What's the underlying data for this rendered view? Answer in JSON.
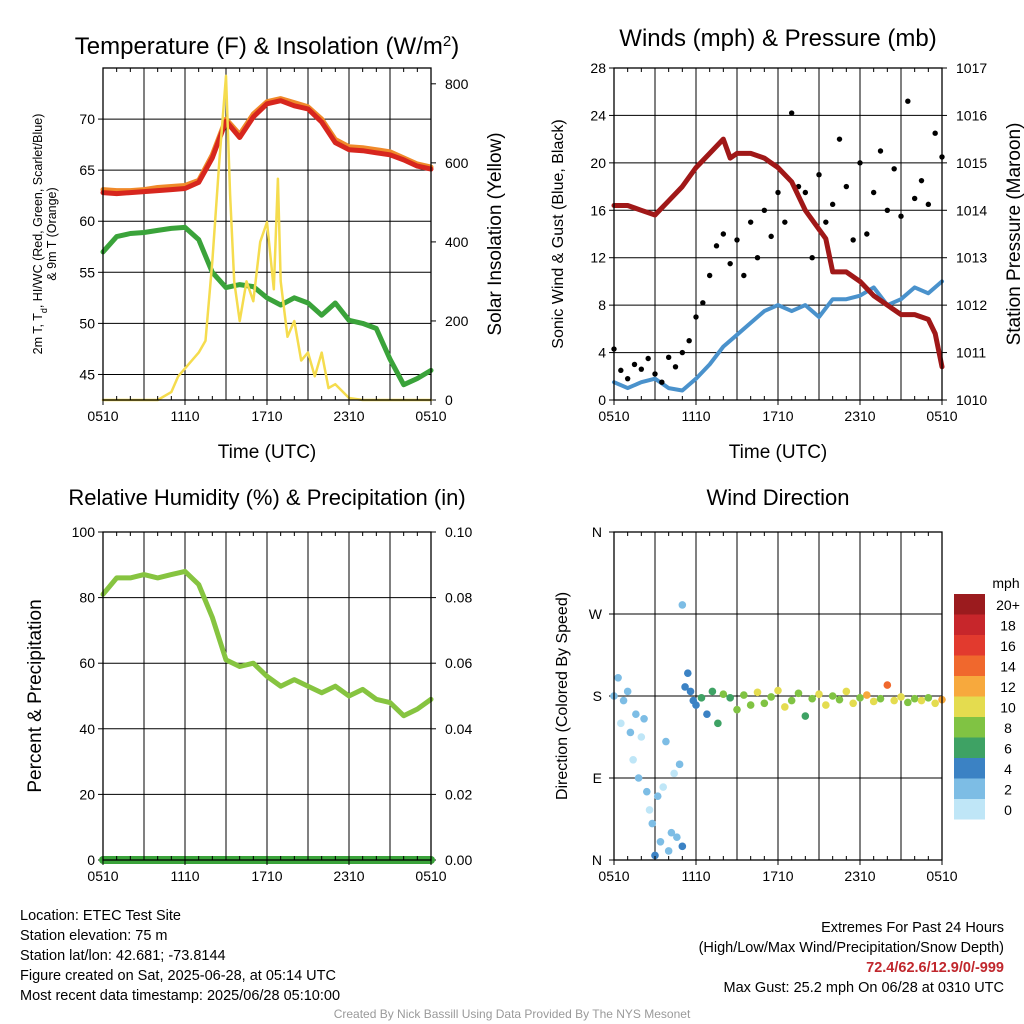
{
  "figure": {
    "credit": "Created By Nick Bassill Using Data Provided By The NYS Mesonet"
  },
  "info": {
    "location": "Location: ETEC Test Site",
    "elevation": "Station elevation: 75 m",
    "latlon": "Station lat/lon: 42.681; -73.8144",
    "created": "Figure created on Sat, 2025-06-28, at 05:14 UTC",
    "recent": "Most recent data timestamp: 2025/06/28 05:10:00",
    "extremes_title": "Extremes For Past 24 Hours",
    "extremes_subtitle": "(High/Low/Max Wind/Precipitation/Snow Depth)",
    "extremes_values": "72.4/62.6/12.9/0/-999",
    "max_gust": "Max Gust: 25.2 mph On 06/28 at 0310 UTC"
  },
  "colors": {
    "temp_red": "#d7261e",
    "temp_orange": "#f08a2a",
    "dewpoint_green": "#3aa33a",
    "insolation_yellow": "#f5dc4e",
    "wind_blue": "#4a92cc",
    "gust_black": "#000000",
    "pressure_maroon": "#a01818",
    "rh_green": "#86c440",
    "precip_green": "#3aa33a"
  },
  "chart_data": [
    {
      "id": "temp",
      "type": "line",
      "title": "Temperature (F) & Insolation (W/m",
      "title_sup": "2",
      "title_end": ")",
      "xlabel": "Time (UTC)",
      "ylabel_line1": "2m T, T",
      "ylabel_sub": "d",
      "ylabel_line1_end": ", HI/WC (Red, Green, Scarlet/Blue)",
      "ylabel_line2": "& 9m T (Orange)",
      "y2label": "Solar Insolation (Yellow)",
      "x_ticks": [
        "0510",
        "1110",
        "1710",
        "2310",
        "0510"
      ],
      "ylim": [
        42.5,
        75
      ],
      "y_ticks": [
        45,
        50,
        55,
        60,
        65,
        70
      ],
      "y2lim": [
        0,
        840
      ],
      "y2_ticks": [
        0,
        200,
        400,
        600,
        800
      ],
      "series": [
        {
          "name": "9m T",
          "color": "#f08a2a",
          "axis": "left",
          "width": 5,
          "x": [
            0,
            1,
            2,
            3,
            4,
            5,
            6,
            7,
            8,
            9,
            10,
            11,
            12,
            13,
            14,
            15,
            16,
            17,
            18,
            19,
            20,
            21,
            22,
            23,
            24
          ],
          "y": [
            63.1,
            63.0,
            63.0,
            63.1,
            63.3,
            63.4,
            63.5,
            64.0,
            66.5,
            70.0,
            68.5,
            70.5,
            71.7,
            72.0,
            71.6,
            71.2,
            70.0,
            68.0,
            67.3,
            67.2,
            67.0,
            66.8,
            66.2,
            65.6,
            65.3
          ]
        },
        {
          "name": "2m T",
          "color": "#d7261e",
          "axis": "left",
          "width": 5,
          "x": [
            0,
            1,
            2,
            3,
            4,
            5,
            6,
            7,
            8,
            9,
            10,
            11,
            12,
            13,
            14,
            15,
            16,
            17,
            18,
            19,
            20,
            21,
            22,
            23,
            24
          ],
          "y": [
            62.8,
            62.7,
            62.8,
            62.9,
            63.0,
            63.1,
            63.2,
            63.8,
            66.2,
            69.8,
            68.2,
            70.2,
            71.5,
            71.8,
            71.3,
            71.0,
            69.7,
            67.7,
            67.0,
            66.9,
            66.7,
            66.5,
            66.0,
            65.4,
            65.1
          ]
        },
        {
          "name": "Dewpoint",
          "color": "#3aa33a",
          "axis": "left",
          "width": 5,
          "x": [
            0,
            1,
            2,
            3,
            4,
            5,
            6,
            7,
            8,
            9,
            10,
            11,
            12,
            13,
            14,
            15,
            16,
            17,
            18,
            19,
            20,
            21,
            22,
            23,
            24
          ],
          "y": [
            57.0,
            58.5,
            58.8,
            58.9,
            59.1,
            59.3,
            59.4,
            58.2,
            55.0,
            53.5,
            53.8,
            53.6,
            52.5,
            51.8,
            52.5,
            52.0,
            50.8,
            52.0,
            50.3,
            50.0,
            49.5,
            46.5,
            44.0,
            44.6,
            45.4
          ]
        },
        {
          "name": "Insolation",
          "color": "#f5dc4e",
          "axis": "right",
          "width": 2.5,
          "x": [
            0,
            1,
            2,
            3,
            4,
            5,
            5.5,
            6,
            7,
            7.5,
            8,
            8.5,
            9,
            9.3,
            9.6,
            10,
            10.5,
            11,
            11.5,
            12,
            12.5,
            12.8,
            13,
            13.5,
            14,
            14.5,
            15,
            15.5,
            16,
            16.5,
            17,
            18,
            19,
            20,
            21,
            22,
            23,
            24
          ],
          "y": [
            0,
            0,
            0,
            0,
            0,
            20,
            60,
            80,
            120,
            150,
            350,
            600,
            820,
            520,
            300,
            200,
            300,
            250,
            400,
            450,
            280,
            560,
            300,
            160,
            200,
            100,
            120,
            60,
            120,
            30,
            40,
            5,
            0,
            0,
            0,
            0,
            0,
            0
          ]
        }
      ]
    },
    {
      "id": "winds",
      "type": "line",
      "title": "Winds (mph) & Pressure (mb)",
      "xlabel": "Time (UTC)",
      "ylabel": "Sonic Wind & Gust (Blue, Black)",
      "y2label": "Station Pressure (Maroon)",
      "x_ticks": [
        "0510",
        "1110",
        "1710",
        "2310",
        "0510"
      ],
      "ylim": [
        0,
        28
      ],
      "y_ticks": [
        0,
        4,
        8,
        12,
        16,
        20,
        24,
        28
      ],
      "y2lim": [
        1010,
        1017
      ],
      "y2_ticks": [
        1010,
        1011,
        1012,
        1013,
        1014,
        1015,
        1016,
        1017
      ],
      "series": [
        {
          "name": "Wind",
          "color": "#4a92cc",
          "axis": "left",
          "width": 4,
          "x": [
            0,
            1,
            2,
            3,
            4,
            5,
            6,
            7,
            8,
            9,
            10,
            11,
            12,
            13,
            14,
            15,
            16,
            17,
            18,
            19,
            20,
            21,
            22,
            23,
            24
          ],
          "y": [
            1.5,
            1.0,
            1.5,
            1.8,
            1.0,
            0.8,
            1.8,
            3.0,
            4.5,
            5.5,
            6.5,
            7.5,
            8.0,
            7.5,
            8.0,
            7.0,
            8.5,
            8.5,
            8.8,
            9.5,
            8.0,
            8.5,
            9.5,
            9.0,
            10.0
          ]
        },
        {
          "name": "Gust",
          "color": "#000000",
          "axis": "left",
          "type": "scatter",
          "x": [
            0,
            0.5,
            1,
            1.5,
            2,
            2.5,
            3,
            3.5,
            4,
            4.5,
            5,
            5.5,
            6,
            6.5,
            7,
            7.5,
            8,
            8.5,
            9,
            9.5,
            10,
            10.5,
            11,
            11.5,
            12,
            12.5,
            13,
            13.5,
            14,
            14.5,
            15,
            15.5,
            16,
            16.5,
            17,
            17.5,
            18,
            18.5,
            19,
            19.5,
            20,
            20.5,
            21,
            21.5,
            22,
            22.5,
            23,
            23.5,
            24
          ],
          "y": [
            4.3,
            2.5,
            1.8,
            3.0,
            2.6,
            3.5,
            2.2,
            1.5,
            3.6,
            2.8,
            4.0,
            5.0,
            7.0,
            8.2,
            10.5,
            13.0,
            14.0,
            11.5,
            13.5,
            10.5,
            15.0,
            12.0,
            16.0,
            13.8,
            17.5,
            15.0,
            24.2,
            18.0,
            17.5,
            12.0,
            19.0,
            15.0,
            16.5,
            22.0,
            18.0,
            13.5,
            20.0,
            14.0,
            17.5,
            21.0,
            16.0,
            19.5,
            15.5,
            25.2,
            17.0,
            18.5,
            16.5,
            22.5,
            20.5
          ]
        },
        {
          "name": "Pressure",
          "color": "#a01818",
          "axis": "right",
          "width": 5,
          "x": [
            0,
            1,
            2,
            3,
            4,
            5,
            6,
            7,
            8,
            8.5,
            9,
            10,
            11,
            11.5,
            12,
            13,
            14,
            15,
            15.5,
            16,
            17,
            18,
            19,
            20,
            21,
            22,
            23,
            23.5,
            24
          ],
          "y": [
            1014.1,
            1014.1,
            1014.0,
            1013.9,
            1014.2,
            1014.5,
            1014.9,
            1015.2,
            1015.5,
            1015.1,
            1015.2,
            1015.2,
            1015.1,
            1015.0,
            1014.9,
            1014.6,
            1014.0,
            1013.6,
            1013.4,
            1012.7,
            1012.7,
            1012.5,
            1012.2,
            1012.0,
            1011.8,
            1011.8,
            1011.7,
            1011.4,
            1010.7
          ]
        }
      ]
    },
    {
      "id": "rh",
      "type": "line",
      "title": "Relative Humidity (%) & Precipitation (in)",
      "xlabel": "",
      "ylabel": "Percent & Precipitation",
      "x_ticks": [
        "0510",
        "1110",
        "1710",
        "2310",
        "0510"
      ],
      "ylim": [
        0,
        100
      ],
      "y_ticks": [
        0,
        20,
        40,
        60,
        80,
        100
      ],
      "y2lim": [
        0,
        0.1
      ],
      "y2_ticks": [
        "0.00",
        "0.02",
        "0.04",
        "0.06",
        "0.08",
        "0.10"
      ],
      "series": [
        {
          "name": "RH",
          "color": "#86c440",
          "axis": "left",
          "width": 5,
          "x": [
            0,
            1,
            2,
            3,
            4,
            5,
            6,
            7,
            8,
            9,
            10,
            11,
            12,
            13,
            14,
            15,
            16,
            17,
            18,
            19,
            20,
            21,
            22,
            23,
            24
          ],
          "y": [
            81,
            86,
            86,
            87,
            86,
            87,
            88,
            84,
            74,
            61,
            59,
            60,
            56,
            53,
            55,
            53,
            51,
            53,
            50,
            52,
            49,
            48,
            44,
            46,
            49
          ]
        },
        {
          "name": "Precipitation",
          "color": "#3aa33a",
          "axis": "right",
          "width": 8,
          "x": [
            0,
            24
          ],
          "y": [
            0,
            0
          ]
        }
      ]
    },
    {
      "id": "wdir",
      "type": "scatter",
      "title": "Wind Direction",
      "ylabel": "Direction (Colored By Speed)",
      "x_ticks": [
        "0510",
        "1110",
        "1710",
        "2310",
        "0510"
      ],
      "y_ticks": [
        "N",
        "E",
        "S",
        "W",
        "N"
      ],
      "ylim": [
        0,
        360
      ],
      "legend_title": "mph",
      "legend_labels": [
        "20+",
        "18",
        "16",
        "14",
        "12",
        "10",
        "8",
        "6",
        "4",
        "2",
        "0"
      ],
      "legend_colors": [
        "#9b1b1e",
        "#c7262b",
        "#e23a2e",
        "#f0682d",
        "#f7a93d",
        "#e4dc4f",
        "#80c343",
        "#3ea264",
        "#3b82c4",
        "#7dbde5",
        "#bfe6f7"
      ],
      "points": [
        [
          0,
          180
        ],
        [
          0.3,
          200
        ],
        [
          0.5,
          150
        ],
        [
          0.7,
          175
        ],
        [
          1,
          185
        ],
        [
          1.2,
          140
        ],
        [
          1.4,
          110
        ],
        [
          1.6,
          160
        ],
        [
          1.8,
          90
        ],
        [
          2,
          135
        ],
        [
          2.2,
          155
        ],
        [
          2.4,
          75
        ],
        [
          2.6,
          55
        ],
        [
          2.8,
          40
        ],
        [
          3,
          5
        ],
        [
          3.2,
          70
        ],
        [
          3.4,
          20
        ],
        [
          3.6,
          80
        ],
        [
          3.8,
          130
        ],
        [
          4,
          10
        ],
        [
          4.2,
          30
        ],
        [
          4.4,
          95
        ],
        [
          4.6,
          25
        ],
        [
          4.8,
          105
        ],
        [
          5,
          280
        ],
        [
          5,
          15
        ],
        [
          5.2,
          190
        ],
        [
          5.4,
          205
        ],
        [
          5.6,
          185
        ],
        [
          5.8,
          175
        ],
        [
          6,
          170
        ],
        [
          6.4,
          178
        ],
        [
          6.8,
          160
        ],
        [
          7.2,
          185
        ],
        [
          7.6,
          150
        ],
        [
          8,
          182
        ],
        [
          8.5,
          178
        ],
        [
          9,
          165
        ],
        [
          9.5,
          181
        ],
        [
          10,
          170
        ],
        [
          10.5,
          184
        ],
        [
          11,
          172
        ],
        [
          11.5,
          179
        ],
        [
          12,
          186
        ],
        [
          12.5,
          168
        ],
        [
          13,
          175
        ],
        [
          13.5,
          183
        ],
        [
          14,
          158
        ],
        [
          14.5,
          177
        ],
        [
          15,
          182
        ],
        [
          15.5,
          170
        ],
        [
          16,
          180
        ],
        [
          16.5,
          176
        ],
        [
          17,
          185
        ],
        [
          17.5,
          172
        ],
        [
          18,
          178
        ],
        [
          18.5,
          181
        ],
        [
          19,
          174
        ],
        [
          19.5,
          177
        ],
        [
          20,
          192
        ],
        [
          20.5,
          175
        ],
        [
          21,
          179
        ],
        [
          21.5,
          173
        ],
        [
          22,
          177
        ],
        [
          22.5,
          175
        ],
        [
          23,
          178
        ],
        [
          23.5,
          172
        ],
        [
          24,
          176
        ]
      ],
      "speeds": [
        1,
        2,
        0,
        1,
        2,
        1,
        0,
        2,
        1,
        0,
        1,
        2,
        0,
        1,
        3,
        1,
        2,
        0,
        1,
        2,
        1,
        0,
        2,
        1,
        1,
        3,
        3,
        4,
        3,
        4,
        4,
        5,
        4,
        6,
        5,
        7,
        6,
        8,
        7,
        8,
        9,
        8,
        7,
        9,
        10,
        8,
        7,
        6,
        8,
        9,
        10,
        8,
        7,
        9,
        10,
        8,
        11,
        9,
        8,
        13,
        10,
        9,
        8,
        7,
        9,
        8,
        10,
        12
      ]
    }
  ]
}
